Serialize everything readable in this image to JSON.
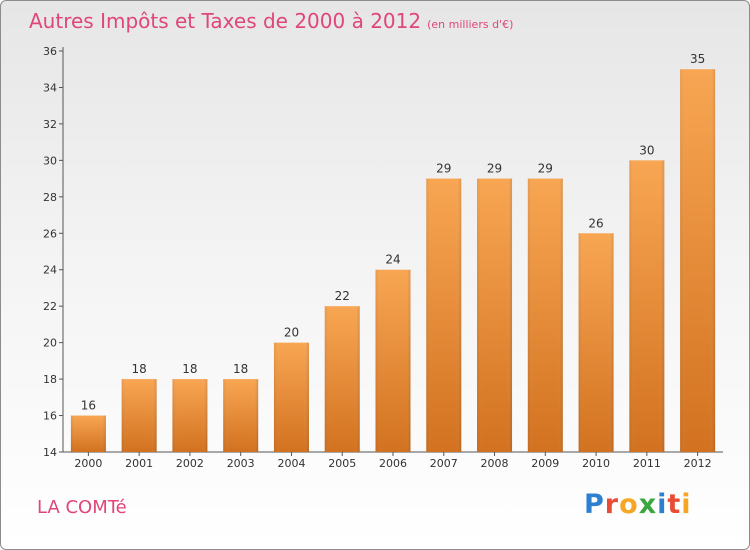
{
  "header": {
    "title": "Autres Impôts et Taxes de 2000 à 2012",
    "subtitle": "(en milliers d'€)"
  },
  "footer": {
    "commune": "LA COMTé",
    "logo_letters": [
      {
        "ch": "P",
        "color": "#2f7fd0"
      },
      {
        "ch": "r",
        "color": "#e94b35"
      },
      {
        "ch": "o",
        "color": "#f6a623"
      },
      {
        "ch": "x",
        "color": "#3aa63f"
      },
      {
        "ch": "i",
        "color": "#2f7fd0"
      },
      {
        "ch": "t",
        "color": "#e94b35"
      },
      {
        "ch": "i",
        "color": "#f6a623"
      }
    ]
  },
  "chart_data": {
    "type": "bar",
    "title": "Autres Impôts et Taxes de 2000 à 2012",
    "subtitle": "(en milliers d'€)",
    "categories": [
      "2000",
      "2001",
      "2002",
      "2003",
      "2004",
      "2005",
      "2006",
      "2007",
      "2008",
      "2009",
      "2010",
      "2011",
      "2012"
    ],
    "values": [
      16,
      18,
      18,
      18,
      20,
      22,
      24,
      29,
      29,
      29,
      26,
      30,
      35
    ],
    "ylim": [
      14,
      36
    ],
    "yticks": [
      14,
      16,
      18,
      20,
      22,
      24,
      26,
      28,
      30,
      32,
      34,
      36
    ],
    "grid": false,
    "colors": {
      "bar_top": "#f8a653",
      "bar_bottom": "#d27220",
      "axis": "#555555"
    }
  }
}
